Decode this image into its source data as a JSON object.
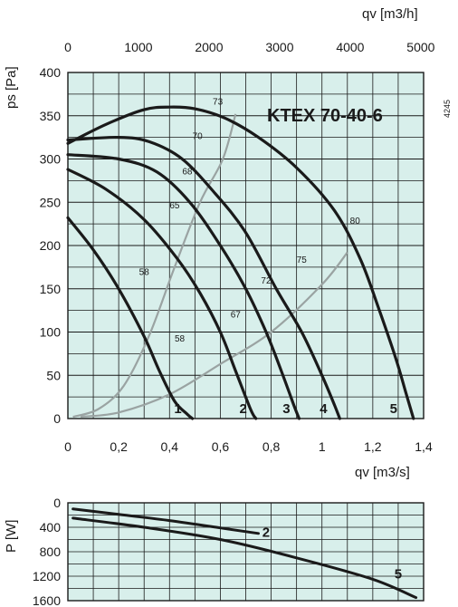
{
  "colors": {
    "plot_bg": "#d8efeb",
    "grid": "#1a1a1a",
    "fan_curve": "#1a1a1a",
    "system_curve": "#9aa3a2"
  },
  "code": "4245",
  "chart_data": [
    {
      "type": "line",
      "title": "KTEX 70-40-6",
      "xlabel": "qv [m3/s]",
      "ylabel": "ps [Pa]",
      "x2label": "qv [m3/h]",
      "xlim": [
        0,
        1.4
      ],
      "ylim": [
        0,
        400
      ],
      "x2lim": [
        0,
        5000
      ],
      "grid": true,
      "x_ticks": [
        "0",
        "0,2",
        "0,4",
        "0,6",
        "0,8",
        "1",
        "1,2",
        "1,4"
      ],
      "y_ticks": [
        "0",
        "50",
        "100",
        "150",
        "200",
        "250",
        "300",
        "350",
        "400"
      ],
      "x2_ticks": [
        "0",
        "1000",
        "2000",
        "3000",
        "4000",
        "5000"
      ],
      "series": [
        {
          "name": "1",
          "x": [
            0,
            0.1,
            0.2,
            0.3,
            0.36,
            0.42,
            0.47,
            0.49
          ],
          "y": [
            232,
            195,
            150,
            95,
            55,
            20,
            5,
            0
          ]
        },
        {
          "name": "2",
          "x": [
            0,
            0.15,
            0.3,
            0.43,
            0.52,
            0.6,
            0.66,
            0.72,
            0.74
          ],
          "y": [
            288,
            265,
            230,
            185,
            145,
            100,
            55,
            10,
            0
          ]
        },
        {
          "name": "3",
          "x": [
            0,
            0.2,
            0.35,
            0.48,
            0.6,
            0.7,
            0.78,
            0.84,
            0.89,
            0.91
          ],
          "y": [
            305,
            300,
            285,
            250,
            200,
            150,
            100,
            55,
            15,
            0
          ]
        },
        {
          "name": "4",
          "x": [
            0,
            0.2,
            0.32,
            0.45,
            0.58,
            0.7,
            0.82,
            0.92,
            1.0,
            1.05,
            1.07
          ],
          "y": [
            322,
            325,
            320,
            300,
            260,
            215,
            150,
            100,
            50,
            15,
            0
          ]
        },
        {
          "name": "5",
          "x": [
            0,
            0.15,
            0.3,
            0.4,
            0.5,
            0.62,
            0.75,
            0.9,
            1.05,
            1.15,
            1.22,
            1.29,
            1.33,
            1.36
          ],
          "y": [
            318,
            340,
            357,
            360,
            358,
            347,
            325,
            290,
            240,
            185,
            130,
            70,
            30,
            0
          ]
        }
      ],
      "system_curves": [
        {
          "x": [
            0.02,
            0.12,
            0.22,
            0.32,
            0.42,
            0.52,
            0.61,
            0.66
          ],
          "y": [
            2,
            11,
            38,
            96,
            175,
            250,
            300,
            352
          ]
        },
        {
          "x": [
            0.05,
            0.2,
            0.4,
            0.6,
            0.8,
            1.0,
            1.1
          ],
          "y": [
            2,
            7,
            28,
            63,
            100,
            155,
            192
          ]
        }
      ],
      "annotations": [
        {
          "text": "73",
          "x": 0.59,
          "y": 363
        },
        {
          "text": "70",
          "x": 0.51,
          "y": 323
        },
        {
          "text": "68",
          "x": 0.47,
          "y": 282
        },
        {
          "text": "65",
          "x": 0.42,
          "y": 243
        },
        {
          "text": "58",
          "x": 0.3,
          "y": 166
        },
        {
          "text": "58",
          "x": 0.44,
          "y": 89
        },
        {
          "text": "67",
          "x": 0.66,
          "y": 117
        },
        {
          "text": "72",
          "x": 0.78,
          "y": 156
        },
        {
          "text": "75",
          "x": 0.92,
          "y": 180
        },
        {
          "text": "80",
          "x": 1.13,
          "y": 225
        }
      ]
    },
    {
      "type": "line",
      "ylabel": "P [W]",
      "ylim": [
        0,
        1600
      ],
      "y_ticks": [
        "0",
        "400",
        "800",
        "1200",
        "1600"
      ],
      "y_inverted": true,
      "series": [
        {
          "name": "2",
          "x": [
            0.02,
            0.2,
            0.4,
            0.6,
            0.75
          ],
          "y": [
            100,
            190,
            290,
            410,
            500
          ]
        },
        {
          "name": "5",
          "x": [
            0.02,
            0.3,
            0.6,
            0.9,
            1.2,
            1.37
          ],
          "y": [
            250,
            400,
            600,
            900,
            1250,
            1550
          ]
        }
      ]
    }
  ]
}
